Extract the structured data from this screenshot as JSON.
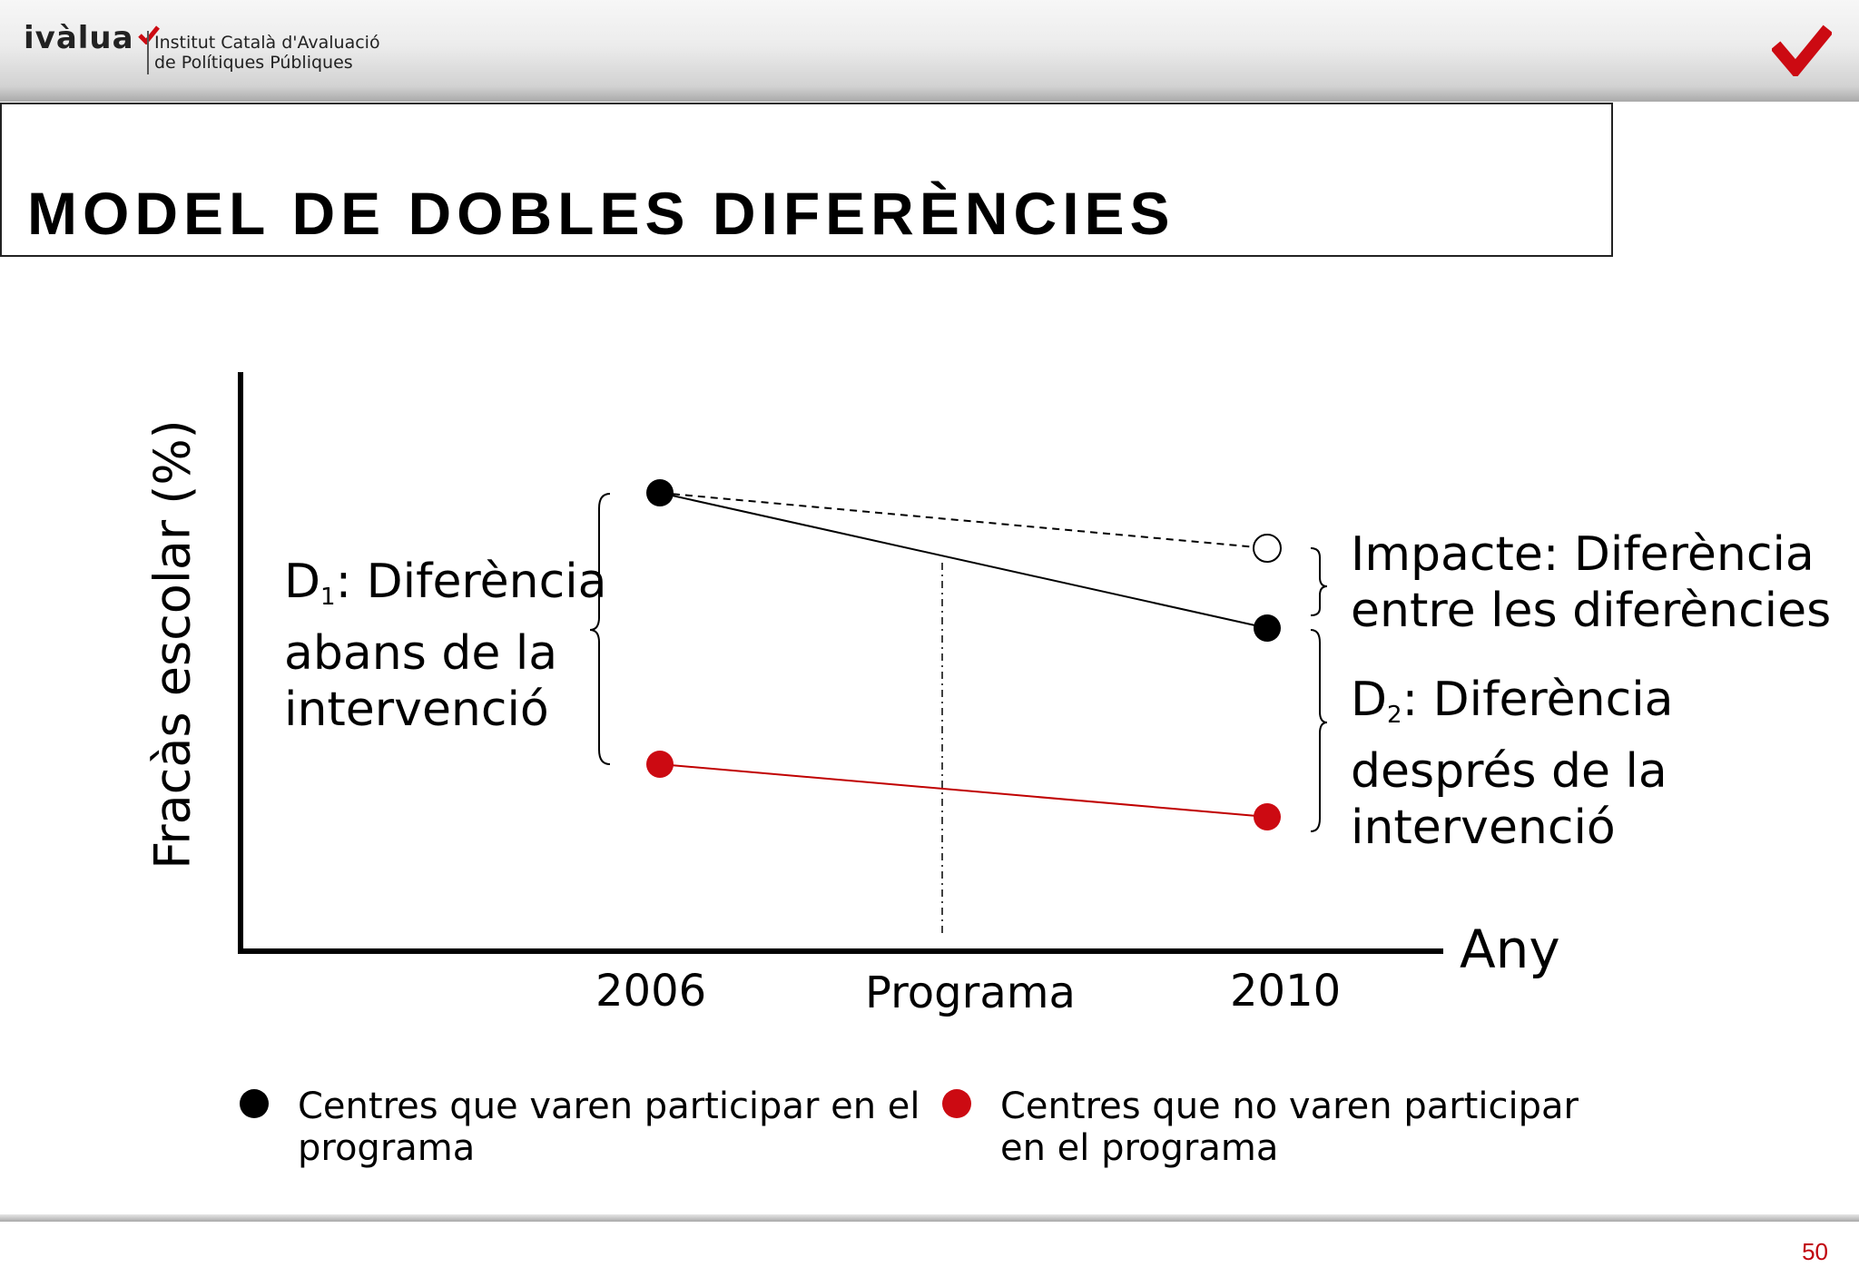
{
  "header": {
    "logo_word": "ivàlua",
    "logo_subtitle_1": "Institut Català d'Avaluació",
    "logo_subtitle_2": "de Polítiques Públiques",
    "brand_color": "#cc0a12"
  },
  "title": "MODEL DE DOBLES DIFERÈNCIES",
  "diagram": {
    "y_axis_label": "Fracàs escolar (%)",
    "x_axis_label": "Any",
    "x_ticks": [
      "2006",
      "Programa",
      "2010"
    ],
    "d1": {
      "symbol": "D",
      "subscript": "1",
      "line1": ": Diferència",
      "line2": "abans de la",
      "line3": "intervenció"
    },
    "impact": {
      "line1": "Impacte: Diferència",
      "line2": "entre les diferències"
    },
    "d2": {
      "symbol": "D",
      "subscript": "2",
      "line1": ": Diferència",
      "line2": "després de la",
      "line3": "intervenció"
    },
    "series": [
      {
        "group": "participants",
        "color": "#000000",
        "points": [
          "2006",
          "2010"
        ]
      },
      {
        "group": "counterfactual",
        "color": "#000000",
        "style": "dashed",
        "end_marker": "hollow"
      },
      {
        "group": "non_participants",
        "color": "#cc0a12",
        "points": [
          "2006",
          "2010"
        ]
      }
    ]
  },
  "legend": {
    "participants": {
      "color": "#000000",
      "line1": "Centres que varen participar en el",
      "line2": "programa"
    },
    "non_participants": {
      "color": "#cc0a12",
      "line1": "Centres que no varen participar",
      "line2": "en el programa"
    }
  },
  "footer": {
    "page_number": "50"
  }
}
